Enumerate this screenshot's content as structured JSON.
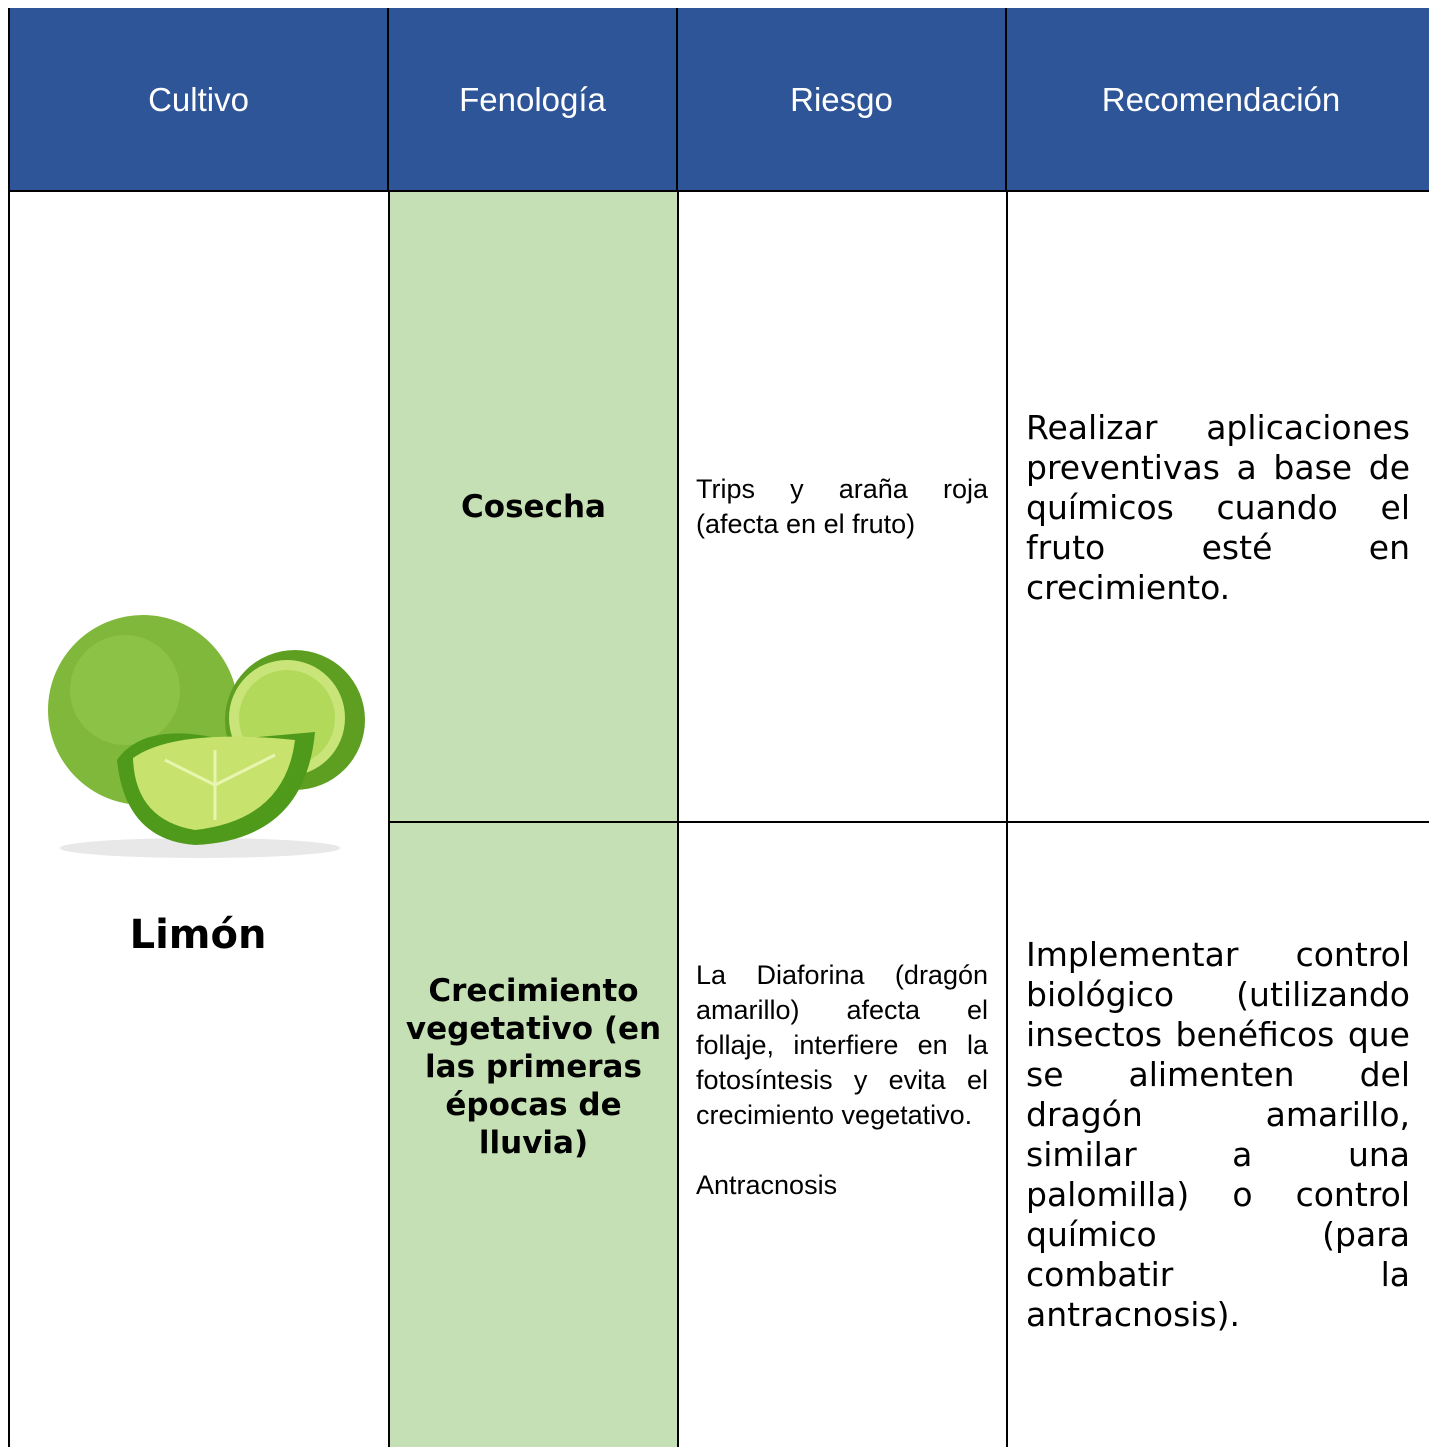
{
  "table": {
    "header": [
      "Cultivo",
      "Fenología",
      "Riesgo",
      "Recomendación"
    ],
    "crop": "Limón",
    "rows": [
      {
        "phenology": "Cosecha",
        "risk": [
          "Trips y araña roja (afecta en el fruto)"
        ],
        "recommendation": "Realizar aplicaciones preventivas a base de químicos cuando el fruto esté en crecimiento."
      },
      {
        "phenology": "Crecimiento vegetativo (en las primeras épocas de lluvia)",
        "risk": [
          "La Diaforina (dragón amarillo) afecta el follaje, interfiere en la fotosíntesis y evita el crecimiento vegetativo.",
          "Antracnosis"
        ],
        "recommendation": "Implementar control biológico (utilizando insectos benéficos que se alimenten del dragón amarillo, similar a una palomilla) o control químico (para combatir la antracnosis)."
      }
    ]
  }
}
